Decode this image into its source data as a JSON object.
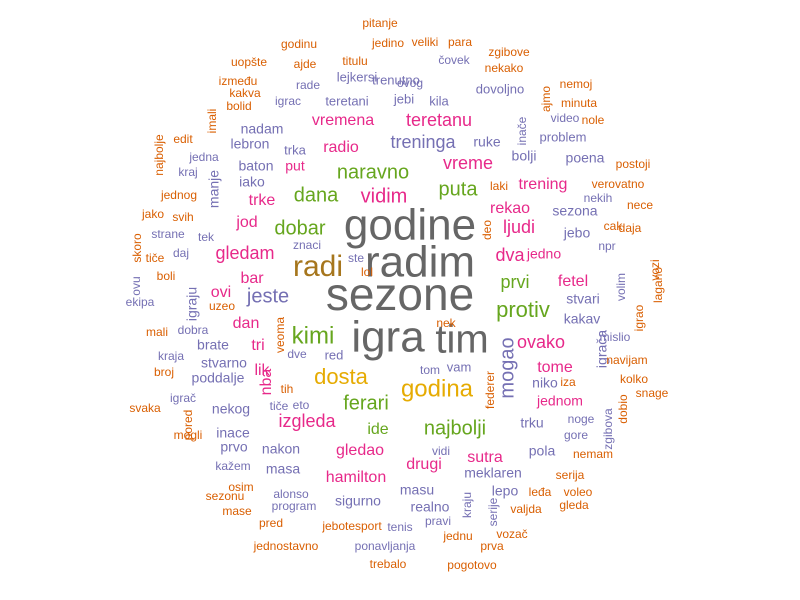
{
  "palette": {
    "c1": "#666666",
    "c2": "#a6761d",
    "c3": "#e7298a",
    "c4": "#66a61e",
    "c5": "#e6ab02",
    "c6": "#7570b3",
    "c7": "#d95f02"
  },
  "words": [
    {
      "t": "sezone",
      "c": "c1"
    },
    {
      "t": "radim",
      "c": "c1"
    },
    {
      "t": "godine",
      "c": "c1"
    },
    {
      "t": "igra",
      "c": "c1"
    },
    {
      "t": "tim",
      "c": "c1"
    },
    {
      "t": "radi",
      "c": "c2"
    },
    {
      "t": "godina",
      "c": "c5"
    },
    {
      "t": "dosta",
      "c": "c5"
    },
    {
      "t": "kimi",
      "c": "c4"
    },
    {
      "t": "najbolji",
      "c": "c4"
    },
    {
      "t": "mogao",
      "c": "c6"
    },
    {
      "t": "ferari",
      "c": "c4"
    },
    {
      "t": "protiv",
      "c": "c4"
    },
    {
      "t": "dobar",
      "c": "c4"
    },
    {
      "t": "jeste",
      "c": "c6"
    },
    {
      "t": "naravno",
      "c": "c4"
    },
    {
      "t": "dana",
      "c": "c4"
    },
    {
      "t": "puta",
      "c": "c4"
    },
    {
      "t": "vidim",
      "c": "c3"
    },
    {
      "t": "vreme",
      "c": "c3"
    },
    {
      "t": "treninga",
      "c": "c6"
    },
    {
      "t": "teretanu",
      "c": "c3"
    },
    {
      "t": "vremena",
      "c": "c3"
    },
    {
      "t": "radio",
      "c": "c3"
    },
    {
      "t": "gledam",
      "c": "c3"
    },
    {
      "t": "ljudi",
      "c": "c3"
    },
    {
      "t": "dva",
      "c": "c3"
    },
    {
      "t": "rekao",
      "c": "c3"
    },
    {
      "t": "prvi",
      "c": "c4"
    },
    {
      "t": "ovako",
      "c": "c3"
    },
    {
      "t": "izgleda",
      "c": "c3"
    },
    {
      "t": "ide",
      "c": "c4"
    },
    {
      "t": "gledao",
      "c": "c3"
    },
    {
      "t": "hamilton",
      "c": "c3"
    },
    {
      "t": "drugi",
      "c": "c3"
    },
    {
      "t": "sutra",
      "c": "c3"
    },
    {
      "t": "tome",
      "c": "c3"
    },
    {
      "t": "jednom",
      "c": "c3"
    },
    {
      "t": "fetel",
      "c": "c3"
    },
    {
      "t": "trening",
      "c": "c3"
    },
    {
      "t": "dan",
      "c": "c3"
    },
    {
      "t": "trke",
      "c": "c3"
    },
    {
      "t": "jod",
      "c": "c3"
    },
    {
      "t": "bar",
      "c": "c3"
    },
    {
      "t": "ovi",
      "c": "c3"
    },
    {
      "t": "tri",
      "c": "c3"
    },
    {
      "t": "lik",
      "c": "c3"
    },
    {
      "t": "put",
      "c": "c3"
    },
    {
      "t": "nba",
      "c": "c3"
    },
    {
      "t": "jedno",
      "c": "c3"
    },
    {
      "t": "ruke",
      "c": "c6"
    },
    {
      "t": "bolji",
      "c": "c6"
    },
    {
      "t": "poena",
      "c": "c6"
    },
    {
      "t": "sezona",
      "c": "c6"
    },
    {
      "t": "jebo",
      "c": "c6"
    },
    {
      "t": "stvari",
      "c": "c6"
    },
    {
      "t": "kakav",
      "c": "c6"
    },
    {
      "t": "igrača",
      "c": "c6"
    },
    {
      "t": "niko",
      "c": "c6"
    },
    {
      "t": "trku",
      "c": "c6"
    },
    {
      "t": "pola",
      "c": "c6"
    },
    {
      "t": "meklaren",
      "c": "c6"
    },
    {
      "t": "lepo",
      "c": "c6"
    },
    {
      "t": "masu",
      "c": "c6"
    },
    {
      "t": "realno",
      "c": "c6"
    },
    {
      "t": "sigurno",
      "c": "c6"
    },
    {
      "t": "masa",
      "c": "c6"
    },
    {
      "t": "nakon",
      "c": "c6"
    },
    {
      "t": "prvo",
      "c": "c6"
    },
    {
      "t": "inace",
      "c": "c6"
    },
    {
      "t": "nekog",
      "c": "c6"
    },
    {
      "t": "poddalje",
      "c": "c6"
    },
    {
      "t": "stvarno",
      "c": "c6"
    },
    {
      "t": "brate",
      "c": "c6"
    },
    {
      "t": "igraju",
      "c": "c6"
    },
    {
      "t": "iako",
      "c": "c6"
    },
    {
      "t": "baton",
      "c": "c6"
    },
    {
      "t": "manje",
      "c": "c6"
    },
    {
      "t": "nadam",
      "c": "c6"
    },
    {
      "t": "lebron",
      "c": "c6"
    },
    {
      "t": "trka",
      "c": "c6"
    },
    {
      "t": "teretani",
      "c": "c6"
    },
    {
      "t": "jebi",
      "c": "c6"
    },
    {
      "t": "kila",
      "c": "c6"
    },
    {
      "t": "dovoljno",
      "c": "c6"
    },
    {
      "t": "trenutno",
      "c": "c6"
    },
    {
      "t": "lejkersi",
      "c": "c6"
    },
    {
      "t": "problem",
      "c": "c6"
    },
    {
      "t": "video",
      "c": "c6"
    },
    {
      "t": "inače",
      "c": "c6"
    },
    {
      "t": "red",
      "c": "c6"
    },
    {
      "t": "vam",
      "c": "c6"
    },
    {
      "t": "tom",
      "c": "c6"
    },
    {
      "t": "tek",
      "c": "c6"
    },
    {
      "t": "igrac",
      "c": "c6"
    },
    {
      "t": "rade",
      "c": "c6"
    },
    {
      "t": "ovog",
      "c": "c6"
    },
    {
      "t": "čovek",
      "c": "c6"
    },
    {
      "t": "jedino",
      "c": "c7"
    },
    {
      "t": "veliki",
      "c": "c7"
    },
    {
      "t": "para",
      "c": "c7"
    },
    {
      "t": "pitanje",
      "c": "c7"
    },
    {
      "t": "godinu",
      "c": "c7"
    },
    {
      "t": "uopšte",
      "c": "c7"
    },
    {
      "t": "ajde",
      "c": "c7"
    },
    {
      "t": "titulu",
      "c": "c7"
    },
    {
      "t": "zgibove",
      "c": "c7"
    },
    {
      "t": "nekako",
      "c": "c7"
    },
    {
      "t": "između",
      "c": "c7"
    },
    {
      "t": "kakva",
      "c": "c7"
    },
    {
      "t": "bolid",
      "c": "c7"
    },
    {
      "t": "ajmo",
      "c": "c7"
    },
    {
      "t": "nemoj",
      "c": "c7"
    },
    {
      "t": "minuta",
      "c": "c7"
    },
    {
      "t": "nole",
      "c": "c7"
    },
    {
      "t": "imali",
      "c": "c7"
    },
    {
      "t": "edit",
      "c": "c7"
    },
    {
      "t": "najbolje",
      "c": "c7"
    },
    {
      "t": "jedna",
      "c": "c6"
    },
    {
      "t": "kraj",
      "c": "c6"
    },
    {
      "t": "jednog",
      "c": "c7"
    },
    {
      "t": "jako",
      "c": "c7"
    },
    {
      "t": "svih",
      "c": "c7"
    },
    {
      "t": "strane",
      "c": "c6"
    },
    {
      "t": "skoro",
      "c": "c7"
    },
    {
      "t": "daj",
      "c": "c6"
    },
    {
      "t": "tiče",
      "c": "c7"
    },
    {
      "t": "ovu",
      "c": "c6"
    },
    {
      "t": "boli",
      "c": "c7"
    },
    {
      "t": "ekipa",
      "c": "c6"
    },
    {
      "t": "uzeo",
      "c": "c7"
    },
    {
      "t": "veoma",
      "c": "c7"
    },
    {
      "t": "mali",
      "c": "c7"
    },
    {
      "t": "dobra",
      "c": "c6"
    },
    {
      "t": "kraja",
      "c": "c6"
    },
    {
      "t": "broj",
      "c": "c7"
    },
    {
      "t": "igrač",
      "c": "c6"
    },
    {
      "t": "svaka",
      "c": "c7"
    },
    {
      "t": "pored",
      "c": "c7"
    },
    {
      "t": "mogli",
      "c": "c7"
    },
    {
      "t": "kažem",
      "c": "c6"
    },
    {
      "t": "osim",
      "c": "c7"
    },
    {
      "t": "sezonu",
      "c": "c7"
    },
    {
      "t": "mase",
      "c": "c7"
    },
    {
      "t": "pred",
      "c": "c7"
    },
    {
      "t": "alonso",
      "c": "c6"
    },
    {
      "t": "program",
      "c": "c6"
    },
    {
      "t": "jebotesport",
      "c": "c7"
    },
    {
      "t": "tenis",
      "c": "c6"
    },
    {
      "t": "pravi",
      "c": "c6"
    },
    {
      "t": "jednu",
      "c": "c7"
    },
    {
      "t": "prva",
      "c": "c7"
    },
    {
      "t": "jednostavno",
      "c": "c7"
    },
    {
      "t": "ponavljanja",
      "c": "c6"
    },
    {
      "t": "trebalo",
      "c": "c7"
    },
    {
      "t": "pogotovo",
      "c": "c7"
    },
    {
      "t": "vozač",
      "c": "c7"
    },
    {
      "t": "valjda",
      "c": "c7"
    },
    {
      "t": "serije",
      "c": "c6"
    },
    {
      "t": "kraju",
      "c": "c6"
    },
    {
      "t": "voleo",
      "c": "c7"
    },
    {
      "t": "gleda",
      "c": "c7"
    },
    {
      "t": "leđa",
      "c": "c7"
    },
    {
      "t": "serija",
      "c": "c7"
    },
    {
      "t": "nemam",
      "c": "c7"
    },
    {
      "t": "gore",
      "c": "c6"
    },
    {
      "t": "noge",
      "c": "c6"
    },
    {
      "t": "zgibova",
      "c": "c6"
    },
    {
      "t": "dobio",
      "c": "c7"
    },
    {
      "t": "snage",
      "c": "c7"
    },
    {
      "t": "kolko",
      "c": "c7"
    },
    {
      "t": "navijam",
      "c": "c7"
    },
    {
      "t": "mislio",
      "c": "c6"
    },
    {
      "t": "igrao",
      "c": "c7"
    },
    {
      "t": "volim",
      "c": "c6"
    },
    {
      "t": "lagano",
      "c": "c7"
    },
    {
      "t": "vozi",
      "c": "c7"
    },
    {
      "t": "daja",
      "c": "c7"
    },
    {
      "t": "cak",
      "c": "c7"
    },
    {
      "t": "npr",
      "c": "c6"
    },
    {
      "t": "nece",
      "c": "c7"
    },
    {
      "t": "nekih",
      "c": "c6"
    },
    {
      "t": "verovatno",
      "c": "c7"
    },
    {
      "t": "postoji",
      "c": "c7"
    },
    {
      "t": "laki",
      "c": "c7"
    },
    {
      "t": "deo",
      "c": "c7"
    },
    {
      "t": "znaci",
      "c": "c6"
    },
    {
      "t": "ste",
      "c": "c6"
    },
    {
      "t": "lol",
      "c": "c7"
    },
    {
      "t": "nek",
      "c": "c7"
    },
    {
      "t": "dve",
      "c": "c6"
    },
    {
      "t": "tih",
      "c": "c7"
    },
    {
      "t": "tiče",
      "c": "c6"
    },
    {
      "t": "eto",
      "c": "c6"
    },
    {
      "t": "federer",
      "c": "c7"
    },
    {
      "t": "iza",
      "c": "c7"
    },
    {
      "t": "vidi",
      "c": "c6"
    }
  ]
}
